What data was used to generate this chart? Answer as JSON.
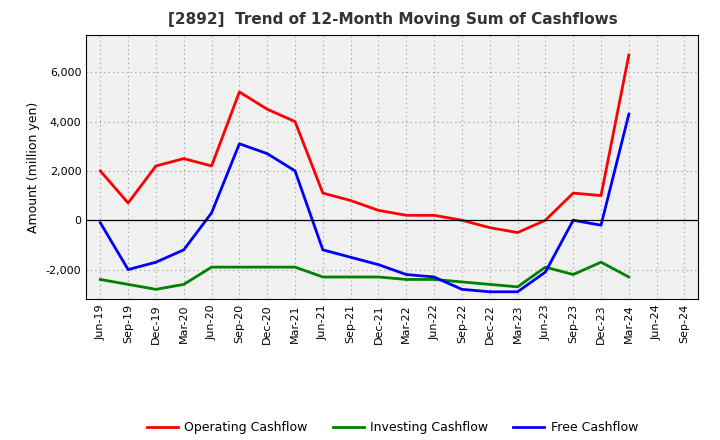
{
  "title": "[2892]  Trend of 12-Month Moving Sum of Cashflows",
  "ylabel": "Amount (million yen)",
  "xlabels": [
    "Jun-19",
    "Sep-19",
    "Dec-19",
    "Mar-20",
    "Jun-20",
    "Sep-20",
    "Dec-20",
    "Mar-21",
    "Jun-21",
    "Sep-21",
    "Dec-21",
    "Mar-22",
    "Jun-22",
    "Sep-22",
    "Dec-22",
    "Mar-23",
    "Jun-23",
    "Sep-23",
    "Dec-23",
    "Mar-24",
    "Jun-24",
    "Sep-24"
  ],
  "operating": [
    2000,
    700,
    2200,
    2500,
    2200,
    5200,
    4500,
    4000,
    1100,
    800,
    400,
    200,
    200,
    0,
    -300,
    -500,
    0,
    1100,
    1000,
    6700,
    null,
    null
  ],
  "investing": [
    -2400,
    -2600,
    -2800,
    -2600,
    -1900,
    -1900,
    -1900,
    -1900,
    -2300,
    -2300,
    -2300,
    -2400,
    -2400,
    -2500,
    -2600,
    -2700,
    -1900,
    -2200,
    -1700,
    -2300,
    null,
    null
  ],
  "free": [
    -100,
    -2000,
    -1700,
    -1200,
    300,
    3100,
    2700,
    2000,
    -1200,
    -1500,
    -1800,
    -2200,
    -2300,
    -2800,
    -2900,
    -2900,
    -2100,
    0,
    -200,
    4300,
    null,
    null
  ],
  "ylim": [
    -3200,
    7500
  ],
  "yticks": [
    -2000,
    0,
    2000,
    4000,
    6000
  ],
  "colors": {
    "operating": "#ff0000",
    "investing": "#008000",
    "free": "#0000ff"
  },
  "legend_labels": [
    "Operating Cashflow",
    "Investing Cashflow",
    "Free Cashflow"
  ],
  "background": "#ffffff",
  "plot_bg": "#f0f0f0",
  "grid_color": "#999999",
  "title_color": "#333333"
}
